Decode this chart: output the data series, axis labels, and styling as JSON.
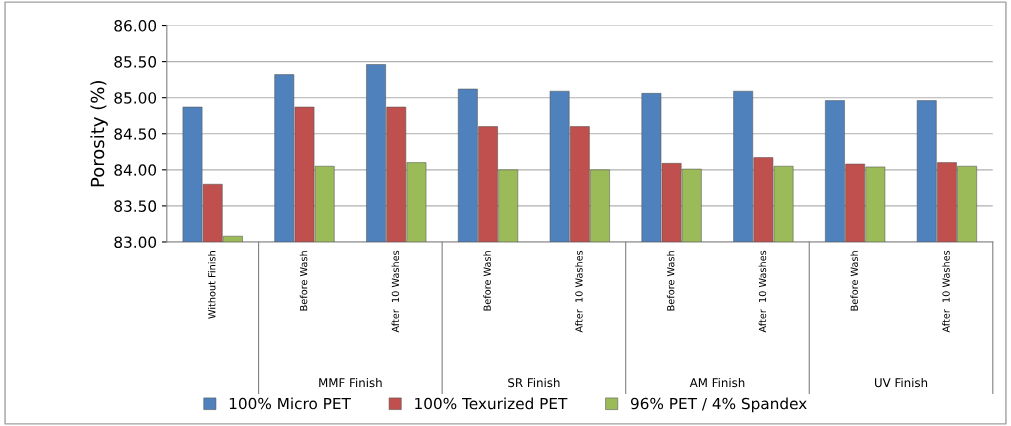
{
  "chart_data": {
    "type": "bar",
    "ylabel": "Porosity (%)",
    "categories": [
      "Without Finish",
      "Before Wash",
      "After  10 Washes",
      "Before Wash",
      "After  10 Washes",
      "Before Wash",
      "After  10 Washes",
      "Before Wash",
      "After  10 Washes"
    ],
    "annotations": [
      "MMF Finish",
      "SR Finish",
      "AM Finish",
      "UV Finish"
    ],
    "series": [
      {
        "name": "100% Micro PET",
        "color": "#4f81bd",
        "values": [
          84.87,
          85.32,
          85.46,
          85.12,
          85.09,
          85.06,
          85.09,
          84.96,
          84.96
        ]
      },
      {
        "name": "100% Texurized PET",
        "color": "#c0504d",
        "values": [
          83.8,
          84.87,
          84.87,
          84.6,
          84.6,
          84.09,
          84.17,
          84.08,
          84.1
        ]
      },
      {
        "name": "96% PET / 4% Spandex",
        "color": "#9bbb59",
        "values": [
          83.08,
          84.05,
          84.1,
          84.0,
          84.0,
          84.01,
          84.05,
          84.04,
          84.05
        ]
      }
    ],
    "ylim": [
      83,
      86
    ],
    "yticks": [
      {
        "value": 83,
        "label": "83.00"
      },
      {
        "value": 83.5,
        "label": "83.50"
      },
      {
        "value": 84,
        "label": "84.00"
      },
      {
        "value": 84.5,
        "label": "84.50"
      },
      {
        "value": 85,
        "label": "85.00"
      },
      {
        "value": 85.5,
        "label": "85.50"
      },
      {
        "value": 86,
        "label": "86.00"
      }
    ],
    "grid": "y",
    "legend": "bottom"
  }
}
